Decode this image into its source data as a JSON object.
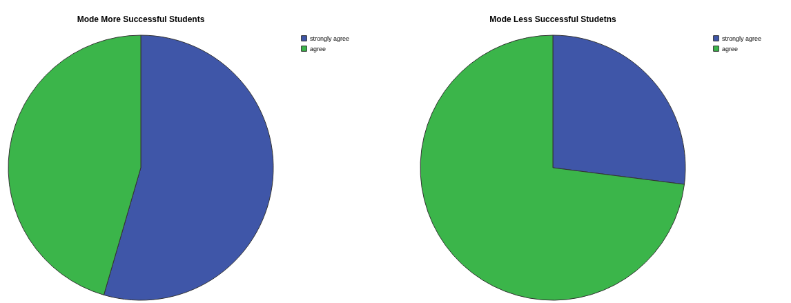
{
  "chart_data": [
    {
      "type": "pie",
      "title": "Mode More Successful Students",
      "categories": [
        "strongly agree",
        "agree"
      ],
      "values": [
        54.5,
        45.5
      ],
      "colors": [
        "#3f56a8",
        "#3bb54a"
      ],
      "legend": "top right"
    },
    {
      "type": "pie",
      "title": "Mode Less Successful Studetns",
      "categories": [
        "strongly agree",
        "agree"
      ],
      "values": [
        27,
        73
      ],
      "colors": [
        "#3f56a8",
        "#3bb54a"
      ],
      "legend": "top right"
    }
  ]
}
